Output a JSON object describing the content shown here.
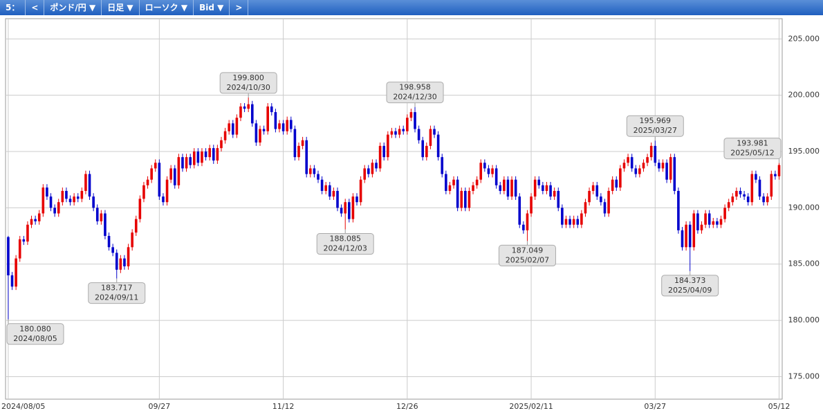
{
  "toolbar": {
    "items": [
      "5：",
      "<",
      "ポンド/円 ▼",
      "日足 ▼",
      "ローソク ▼",
      "Bid ▼",
      ">"
    ]
  },
  "chart_data": {
    "type": "candlestick",
    "up_color": "#e60000",
    "down_color": "#0000cc",
    "grid": true,
    "xlim": [
      -0.7,
      199.8
    ],
    "xticks": [
      {
        "value": 0,
        "label": "2024/08/05"
      },
      {
        "value": 39,
        "label": "09/27"
      },
      {
        "value": 71,
        "label": "11/12"
      },
      {
        "value": 103,
        "label": "12/26"
      },
      {
        "value": 135,
        "label": "2025/02/11"
      },
      {
        "value": 167,
        "label": "03/27"
      },
      {
        "value": 199,
        "label": "05/12"
      }
    ],
    "ylim": [
      173.0,
      206.8
    ],
    "yticks": [
      {
        "value": 175,
        "label": "175.000"
      },
      {
        "value": 180,
        "label": "180.000"
      },
      {
        "value": 185,
        "label": "185.000"
      },
      {
        "value": 190,
        "label": "190.000"
      },
      {
        "value": 195,
        "label": "195.000"
      },
      {
        "value": 200,
        "label": "200.000"
      },
      {
        "value": 205,
        "label": "205.000"
      }
    ],
    "open": [
      187.4,
      184.0,
      183.0,
      185.5,
      187.2,
      187.0,
      188.5,
      189.0,
      188.8,
      189.5,
      191.8,
      191.0,
      190.0,
      189.5,
      190.5,
      191.5,
      190.8,
      190.5,
      191.0,
      190.8,
      191.5,
      193.0,
      191.0,
      190.0,
      188.8,
      189.5,
      187.5,
      186.5,
      186.0,
      184.5,
      185.5,
      184.8,
      186.5,
      187.8,
      189.0,
      190.8,
      192.0,
      192.5,
      193.5,
      194.0,
      191.0,
      190.5,
      192.5,
      193.5,
      192.0,
      194.5,
      193.5,
      194.5,
      193.8,
      195.0,
      194.0,
      195.0,
      194.5,
      195.3,
      194.2,
      195.3,
      196.0,
      196.8,
      197.5,
      196.5,
      198.0,
      199.0,
      198.8,
      199.2,
      197.5,
      195.8,
      197.0,
      196.8,
      199.0,
      198.5,
      197.0,
      197.5,
      196.8,
      197.8,
      197.0,
      194.5,
      195.5,
      196.0,
      193.0,
      193.5,
      193.0,
      192.5,
      191.5,
      192.0,
      191.0,
      191.5,
      190.0,
      189.5,
      190.5,
      189.0,
      191.0,
      190.5,
      192.5,
      193.5,
      193.0,
      194.0,
      193.5,
      195.5,
      194.5,
      196.5,
      196.8,
      196.5,
      197.0,
      196.8,
      198.0,
      198.5,
      197.0,
      196.0,
      194.5,
      195.5,
      197.0,
      196.5,
      194.5,
      193.0,
      191.5,
      192.0,
      192.5,
      190.0,
      191.5,
      190.0,
      191.5,
      192.0,
      192.5,
      194.0,
      193.5,
      193.0,
      193.5,
      192.0,
      191.5,
      192.5,
      191.0,
      192.5,
      191.0,
      188.5,
      188.0,
      189.5,
      191.0,
      192.5,
      192.0,
      191.5,
      192.0,
      191.0,
      191.5,
      190.0,
      188.5,
      189.0,
      188.5,
      189.0,
      188.5,
      189.5,
      190.5,
      191.5,
      192.0,
      191.0,
      190.5,
      189.5,
      191.5,
      192.5,
      191.8,
      193.5,
      194.0,
      194.5,
      193.5,
      193.0,
      193.5,
      194.0,
      194.5,
      195.5,
      194.0,
      193.5,
      194.0,
      192.5,
      194.5,
      191.5,
      188.0,
      186.5,
      188.5,
      186.5,
      189.5,
      188.0,
      188.5,
      189.5,
      188.5,
      188.8,
      188.5,
      189.0,
      190.0,
      190.5,
      191.0,
      191.5,
      191.2,
      191.0,
      190.5,
      193.0,
      192.5,
      191.0,
      190.5,
      191.0,
      193.0,
      192.8
    ],
    "high": [
      187.5,
      184.3,
      185.8,
      187.5,
      187.5,
      188.8,
      189.3,
      189.3,
      189.8,
      192.1,
      192.1,
      191.3,
      190.3,
      190.8,
      191.8,
      191.8,
      191.1,
      191.3,
      191.3,
      191.8,
      193.3,
      193.3,
      191.3,
      190.3,
      189.8,
      189.8,
      187.8,
      186.8,
      186.3,
      185.8,
      185.8,
      186.8,
      188.1,
      189.3,
      191.1,
      192.3,
      192.8,
      193.8,
      194.3,
      194.3,
      191.3,
      192.8,
      193.8,
      193.8,
      194.8,
      194.8,
      194.8,
      194.8,
      195.3,
      195.3,
      195.3,
      195.3,
      195.6,
      195.6,
      195.6,
      196.3,
      197.1,
      197.8,
      197.8,
      198.3,
      199.3,
      199.3,
      199.8,
      199.5,
      197.8,
      197.3,
      197.3,
      199.3,
      199.3,
      198.8,
      197.8,
      197.8,
      198.1,
      198.1,
      197.3,
      195.8,
      196.3,
      196.3,
      193.8,
      193.8,
      193.3,
      192.8,
      192.3,
      192.3,
      191.8,
      191.8,
      190.3,
      190.8,
      190.8,
      191.3,
      191.3,
      192.8,
      193.8,
      193.8,
      194.3,
      194.3,
      195.8,
      195.8,
      196.8,
      197.1,
      197.1,
      197.3,
      197.3,
      198.3,
      198.8,
      198.958,
      197.3,
      196.3,
      195.8,
      197.3,
      197.3,
      196.8,
      194.8,
      193.3,
      192.3,
      192.8,
      192.8,
      191.8,
      191.8,
      191.8,
      192.3,
      192.8,
      194.3,
      194.3,
      193.8,
      193.8,
      193.8,
      192.3,
      192.8,
      192.8,
      192.8,
      192.8,
      191.3,
      188.8,
      189.8,
      191.3,
      192.8,
      192.8,
      192.3,
      192.3,
      192.3,
      191.8,
      191.8,
      190.3,
      189.3,
      189.3,
      189.3,
      189.3,
      189.8,
      190.8,
      191.8,
      192.3,
      192.3,
      191.3,
      190.8,
      191.8,
      192.8,
      192.8,
      193.8,
      194.3,
      194.8,
      194.8,
      193.8,
      193.8,
      194.3,
      194.8,
      195.8,
      195.969,
      194.3,
      194.3,
      194.3,
      194.8,
      194.8,
      191.8,
      188.3,
      188.8,
      188.8,
      189.8,
      189.8,
      188.8,
      189.8,
      189.8,
      189.1,
      189.1,
      189.3,
      190.3,
      190.8,
      191.3,
      191.8,
      191.8,
      191.5,
      191.3,
      193.3,
      193.3,
      192.8,
      191.3,
      191.3,
      193.3,
      193.3,
      193.981
    ],
    "low": [
      180.08,
      182.7,
      182.7,
      185.2,
      186.7,
      186.7,
      188.2,
      188.5,
      188.5,
      189.2,
      190.7,
      189.7,
      189.2,
      189.2,
      190.2,
      190.5,
      190.2,
      190.2,
      190.5,
      190.5,
      191.2,
      190.7,
      189.7,
      188.5,
      188.5,
      187.2,
      186.2,
      185.7,
      183.717,
      184.2,
      184.5,
      184.5,
      186.2,
      187.5,
      188.7,
      190.5,
      191.7,
      192.2,
      193.2,
      190.7,
      190.2,
      190.2,
      192.2,
      191.7,
      191.7,
      193.2,
      193.2,
      193.5,
      193.5,
      193.7,
      193.7,
      194.2,
      194.2,
      193.9,
      193.9,
      195.0,
      195.7,
      196.5,
      196.2,
      196.2,
      197.7,
      198.5,
      198.5,
      197.2,
      195.5,
      195.5,
      196.5,
      196.5,
      198.2,
      196.7,
      196.7,
      196.5,
      196.5,
      196.7,
      194.2,
      194.2,
      195.2,
      192.7,
      192.7,
      192.7,
      192.2,
      191.2,
      191.2,
      190.7,
      190.7,
      189.7,
      189.2,
      188.085,
      188.7,
      188.7,
      190.2,
      190.2,
      192.2,
      192.7,
      192.7,
      193.2,
      193.2,
      194.2,
      194.2,
      196.2,
      196.2,
      196.2,
      196.5,
      196.5,
      197.7,
      196.7,
      195.7,
      194.2,
      194.2,
      195.2,
      196.2,
      194.2,
      192.7,
      191.2,
      191.2,
      191.7,
      189.7,
      189.7,
      189.7,
      189.7,
      191.2,
      191.7,
      192.2,
      193.2,
      192.7,
      192.7,
      191.7,
      191.2,
      191.2,
      190.7,
      190.7,
      190.7,
      188.2,
      187.7,
      187.049,
      189.2,
      190.7,
      191.7,
      191.2,
      191.2,
      190.7,
      190.7,
      189.7,
      188.2,
      188.2,
      188.2,
      188.2,
      188.2,
      188.2,
      189.2,
      190.2,
      191.2,
      190.7,
      190.2,
      189.2,
      189.2,
      191.2,
      191.5,
      191.5,
      193.2,
      193.7,
      193.2,
      192.7,
      192.7,
      193.2,
      193.7,
      194.2,
      193.7,
      193.2,
      193.2,
      192.2,
      192.2,
      191.2,
      187.7,
      186.2,
      186.2,
      184.373,
      186.2,
      187.7,
      187.7,
      188.2,
      188.2,
      188.2,
      188.2,
      188.2,
      188.7,
      189.7,
      190.2,
      190.7,
      190.9,
      190.7,
      190.2,
      190.2,
      192.2,
      190.7,
      190.2,
      190.2,
      190.7,
      192.5,
      192.5
    ],
    "close": [
      184.0,
      183.0,
      185.5,
      187.2,
      187.0,
      188.5,
      189.0,
      188.8,
      189.5,
      191.8,
      191.0,
      190.0,
      189.5,
      190.5,
      191.5,
      190.8,
      190.5,
      191.0,
      190.8,
      191.5,
      193.0,
      191.0,
      190.0,
      188.8,
      189.5,
      187.5,
      186.5,
      186.0,
      184.5,
      185.5,
      184.8,
      186.5,
      187.8,
      189.0,
      190.8,
      192.0,
      192.5,
      193.5,
      194.0,
      191.0,
      190.5,
      192.5,
      193.5,
      192.0,
      194.5,
      193.5,
      194.5,
      193.8,
      195.0,
      194.0,
      195.0,
      194.5,
      195.3,
      194.2,
      195.3,
      196.0,
      196.8,
      197.5,
      196.5,
      198.0,
      199.0,
      198.8,
      199.2,
      197.5,
      195.8,
      197.0,
      196.8,
      199.0,
      198.5,
      197.0,
      197.5,
      196.8,
      197.8,
      197.0,
      194.5,
      195.5,
      196.0,
      193.0,
      193.5,
      193.0,
      192.5,
      191.5,
      192.0,
      191.0,
      191.5,
      190.0,
      189.5,
      190.5,
      189.0,
      191.0,
      190.5,
      192.5,
      193.5,
      193.0,
      194.0,
      193.5,
      195.5,
      194.5,
      196.5,
      196.8,
      196.5,
      197.0,
      196.8,
      198.0,
      198.5,
      197.0,
      196.0,
      194.5,
      195.5,
      197.0,
      196.5,
      194.5,
      193.0,
      191.5,
      192.0,
      192.5,
      190.0,
      191.5,
      190.0,
      191.5,
      192.0,
      192.5,
      194.0,
      193.5,
      193.0,
      193.5,
      192.0,
      191.5,
      192.5,
      191.0,
      192.5,
      191.0,
      188.5,
      188.0,
      189.5,
      191.0,
      192.5,
      192.0,
      191.5,
      192.0,
      191.0,
      191.5,
      190.0,
      188.5,
      189.0,
      188.5,
      189.0,
      188.5,
      189.5,
      190.5,
      191.5,
      192.0,
      191.0,
      190.5,
      189.5,
      191.5,
      192.5,
      191.8,
      193.5,
      194.0,
      194.5,
      193.5,
      193.0,
      193.5,
      194.0,
      194.5,
      195.5,
      194.0,
      193.5,
      194.0,
      192.5,
      194.5,
      191.5,
      188.0,
      186.5,
      188.5,
      186.5,
      189.5,
      188.0,
      188.5,
      189.5,
      188.5,
      188.8,
      188.5,
      189.0,
      190.0,
      190.5,
      191.0,
      191.5,
      191.2,
      191.0,
      190.5,
      193.0,
      192.5,
      191.0,
      190.5,
      191.0,
      193.0,
      192.8,
      193.8
    ],
    "annotations": [
      {
        "text": "180.080",
        "date": "2024/08/05",
        "index": 0,
        "price": "low"
      },
      {
        "text": "183.717",
        "date": "2024/09/11",
        "index": 28,
        "price": "low"
      },
      {
        "text": "199.800",
        "date": "2024/10/30",
        "index": 62,
        "price": "high"
      },
      {
        "text": "188.085",
        "date": "2024/12/03",
        "index": 87,
        "price": "low"
      },
      {
        "text": "198.958",
        "date": "2024/12/30",
        "index": 105,
        "price": "high"
      },
      {
        "text": "187.049",
        "date": "2025/02/07",
        "index": 134,
        "price": "low"
      },
      {
        "text": "195.969",
        "date": "2025/03/27",
        "index": 167,
        "price": "high"
      },
      {
        "text": "184.373",
        "date": "2025/04/09",
        "index": 176,
        "price": "low"
      },
      {
        "text": "193.981",
        "date": "2025/05/12",
        "index": 199,
        "price": "high"
      }
    ]
  }
}
